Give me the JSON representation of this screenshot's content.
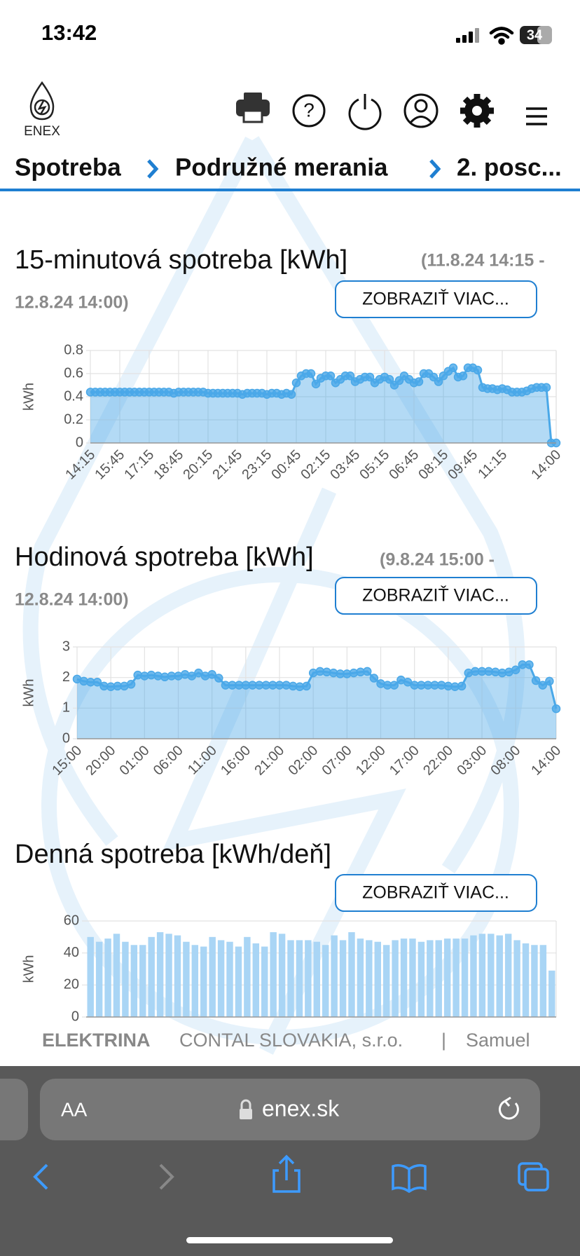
{
  "status_bar": {
    "time": "13:42",
    "battery": "34"
  },
  "header": {
    "logo": "ENEX",
    "breadcrumbs": [
      "Spotreba",
      "Podružné merania",
      "2. posc..."
    ]
  },
  "buttons": [
    "ZOBRAZIŤ VIAC...",
    "ZOBRAZIŤ VIAC...",
    "ZOBRAZIŤ VIAC..."
  ],
  "chart_data": [
    {
      "type": "area",
      "title": "15-minutová spotreba [kWh]",
      "subtitle": [
        "(11.8.24 14:15 -",
        "12.8.24 14:00)"
      ],
      "y_label": "kWh",
      "color": "#4aa8e8",
      "grid": true,
      "ylim": [
        0,
        0.8
      ],
      "yticks": [
        0,
        0.2,
        0.4,
        0.6,
        0.8
      ],
      "categories": [
        "14:15",
        null,
        null,
        null,
        null,
        null,
        "15:45",
        null,
        null,
        null,
        null,
        null,
        "17:15",
        null,
        null,
        null,
        null,
        null,
        "18:45",
        null,
        null,
        null,
        null,
        null,
        "20:15",
        null,
        null,
        null,
        null,
        null,
        "21:45",
        null,
        null,
        null,
        null,
        null,
        "23:15",
        null,
        null,
        null,
        null,
        null,
        "00:45",
        null,
        null,
        null,
        null,
        null,
        "02:15",
        null,
        null,
        null,
        null,
        null,
        "03:45",
        null,
        null,
        null,
        null,
        null,
        "05:15",
        null,
        null,
        null,
        null,
        null,
        "06:45",
        null,
        null,
        null,
        null,
        null,
        "08:15",
        null,
        null,
        null,
        null,
        null,
        "09:45",
        null,
        null,
        null,
        null,
        null,
        "11:15",
        null,
        null,
        null,
        null,
        null,
        null,
        null,
        null,
        null,
        null,
        "14:00"
      ],
      "values": [
        0.44,
        0.44,
        0.44,
        0.44,
        0.44,
        0.44,
        0.44,
        0.44,
        0.44,
        0.44,
        0.44,
        0.44,
        0.44,
        0.44,
        0.44,
        0.44,
        0.44,
        0.43,
        0.44,
        0.44,
        0.44,
        0.44,
        0.44,
        0.44,
        0.43,
        0.43,
        0.43,
        0.43,
        0.43,
        0.43,
        0.43,
        0.42,
        0.43,
        0.43,
        0.43,
        0.43,
        0.42,
        0.43,
        0.43,
        0.42,
        0.43,
        0.42,
        0.52,
        0.58,
        0.6,
        0.6,
        0.51,
        0.56,
        0.58,
        0.58,
        0.52,
        0.55,
        0.58,
        0.58,
        0.53,
        0.55,
        0.57,
        0.57,
        0.52,
        0.55,
        0.57,
        0.55,
        0.5,
        0.54,
        0.58,
        0.55,
        0.52,
        0.53,
        0.6,
        0.6,
        0.57,
        0.53,
        0.58,
        0.62,
        0.65,
        0.57,
        0.58,
        0.65,
        0.65,
        0.63,
        0.48,
        0.47,
        0.47,
        0.46,
        0.47,
        0.46,
        0.44,
        0.44,
        0.44,
        0.45,
        0.47,
        0.48,
        0.48,
        0.48,
        0,
        0
      ]
    },
    {
      "type": "area",
      "title": "Hodinová spotreba [kWh]",
      "subtitle": [
        "(9.8.24 15:00 -",
        "12.8.24 14:00)"
      ],
      "y_label": "kWh",
      "color": "#4aa8e8",
      "grid": true,
      "ylim": [
        0,
        3
      ],
      "yticks": [
        0,
        1,
        2,
        3
      ],
      "categories": [
        "15:00",
        null,
        null,
        null,
        null,
        "20:00",
        null,
        null,
        null,
        null,
        "01:00",
        null,
        null,
        null,
        null,
        "06:00",
        null,
        null,
        null,
        null,
        "11:00",
        null,
        null,
        null,
        null,
        "16:00",
        null,
        null,
        null,
        null,
        "21:00",
        null,
        null,
        null,
        null,
        "02:00",
        null,
        null,
        null,
        null,
        "07:00",
        null,
        null,
        null,
        null,
        "12:00",
        null,
        null,
        null,
        null,
        "17:00",
        null,
        null,
        null,
        null,
        "22:00",
        null,
        null,
        null,
        null,
        "03:00",
        null,
        null,
        null,
        null,
        "08:00",
        null,
        null,
        null,
        null,
        null,
        "14:00"
      ],
      "values": [
        1.95,
        1.88,
        1.85,
        1.85,
        1.72,
        1.7,
        1.72,
        1.72,
        1.78,
        2.08,
        2.05,
        2.08,
        2.05,
        2.02,
        2.05,
        2.05,
        2.1,
        2.05,
        2.15,
        2.05,
        2.1,
        1.98,
        1.75,
        1.75,
        1.75,
        1.75,
        1.75,
        1.75,
        1.75,
        1.75,
        1.75,
        1.75,
        1.72,
        1.7,
        1.72,
        2.15,
        2.2,
        2.18,
        2.15,
        2.12,
        2.12,
        2.15,
        2.18,
        2.2,
        1.98,
        1.8,
        1.75,
        1.75,
        1.92,
        1.85,
        1.75,
        1.75,
        1.75,
        1.75,
        1.75,
        1.72,
        1.7,
        1.72,
        2.15,
        2.2,
        2.2,
        2.2,
        2.18,
        2.15,
        2.18,
        2.25,
        2.42,
        2.42,
        1.9,
        1.75,
        1.88,
        0.98
      ]
    },
    {
      "type": "bar",
      "title": "Denná spotreba [kWh/deň]",
      "y_label": "kWh",
      "color": "#a9d5f5",
      "grid": true,
      "ylim": [
        0,
        60
      ],
      "yticks": [
        0,
        20,
        40,
        60
      ],
      "categories": [
        null,
        null,
        null,
        null,
        null,
        null,
        null,
        null,
        null,
        null,
        null,
        null,
        null,
        null,
        null,
        null,
        null,
        null,
        null,
        null,
        null,
        null,
        null,
        null,
        null,
        null,
        null,
        null,
        null,
        null,
        null,
        null,
        null,
        null,
        null,
        null,
        null,
        null,
        null,
        null,
        null,
        null,
        null,
        null,
        null,
        null,
        null,
        null,
        null,
        null,
        null,
        null,
        null,
        null
      ],
      "values": [
        50,
        47,
        49,
        52,
        47,
        45,
        45,
        50,
        53,
        52,
        51,
        47,
        45,
        44,
        50,
        48,
        47,
        44,
        50,
        46,
        44,
        53,
        52,
        48,
        48,
        48,
        47,
        45,
        51,
        48,
        53,
        49,
        48,
        47,
        45,
        48,
        49,
        49,
        47,
        48,
        48,
        49,
        49,
        49,
        51,
        52,
        52,
        51,
        52,
        48,
        46,
        45,
        45,
        29
      ]
    }
  ],
  "footer": {
    "company": "ELEKTRINA",
    "provider": "CONTAL SLOVAKIA, s.r.o.",
    "separator": "|",
    "user": "Samuel"
  },
  "browser": {
    "text_size": "AA",
    "url": "enex.sk"
  }
}
